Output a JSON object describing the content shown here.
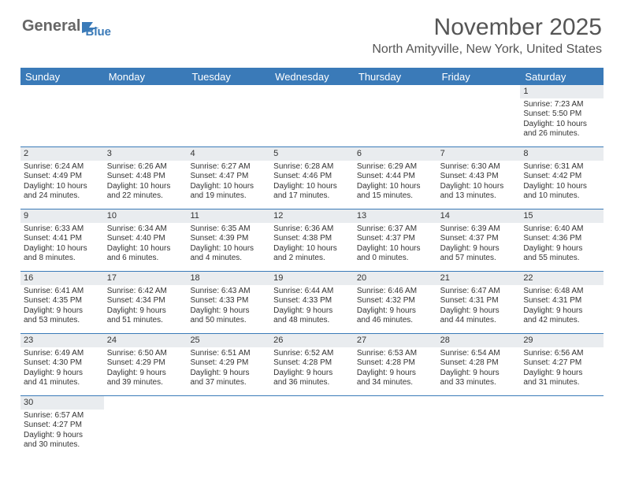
{
  "logo": {
    "text1": "General",
    "text2": "Blue"
  },
  "title": {
    "month": "November 2025",
    "location": "North Amityville, New York, United States"
  },
  "colors": {
    "header_bg": "#3a7ab8",
    "daynum_bg": "#e9ecef",
    "row_border": "#3a7ab8",
    "text": "#333333",
    "title_text": "#555555",
    "background": "#ffffff"
  },
  "daysOfWeek": [
    "Sunday",
    "Monday",
    "Tuesday",
    "Wednesday",
    "Thursday",
    "Friday",
    "Saturday"
  ],
  "weeks": [
    [
      null,
      null,
      null,
      null,
      null,
      null,
      {
        "n": "1",
        "sr": "Sunrise: 7:23 AM",
        "ss": "Sunset: 5:50 PM",
        "d1": "Daylight: 10 hours",
        "d2": "and 26 minutes."
      }
    ],
    [
      {
        "n": "2",
        "sr": "Sunrise: 6:24 AM",
        "ss": "Sunset: 4:49 PM",
        "d1": "Daylight: 10 hours",
        "d2": "and 24 minutes."
      },
      {
        "n": "3",
        "sr": "Sunrise: 6:26 AM",
        "ss": "Sunset: 4:48 PM",
        "d1": "Daylight: 10 hours",
        "d2": "and 22 minutes."
      },
      {
        "n": "4",
        "sr": "Sunrise: 6:27 AM",
        "ss": "Sunset: 4:47 PM",
        "d1": "Daylight: 10 hours",
        "d2": "and 19 minutes."
      },
      {
        "n": "5",
        "sr": "Sunrise: 6:28 AM",
        "ss": "Sunset: 4:46 PM",
        "d1": "Daylight: 10 hours",
        "d2": "and 17 minutes."
      },
      {
        "n": "6",
        "sr": "Sunrise: 6:29 AM",
        "ss": "Sunset: 4:44 PM",
        "d1": "Daylight: 10 hours",
        "d2": "and 15 minutes."
      },
      {
        "n": "7",
        "sr": "Sunrise: 6:30 AM",
        "ss": "Sunset: 4:43 PM",
        "d1": "Daylight: 10 hours",
        "d2": "and 13 minutes."
      },
      {
        "n": "8",
        "sr": "Sunrise: 6:31 AM",
        "ss": "Sunset: 4:42 PM",
        "d1": "Daylight: 10 hours",
        "d2": "and 10 minutes."
      }
    ],
    [
      {
        "n": "9",
        "sr": "Sunrise: 6:33 AM",
        "ss": "Sunset: 4:41 PM",
        "d1": "Daylight: 10 hours",
        "d2": "and 8 minutes."
      },
      {
        "n": "10",
        "sr": "Sunrise: 6:34 AM",
        "ss": "Sunset: 4:40 PM",
        "d1": "Daylight: 10 hours",
        "d2": "and 6 minutes."
      },
      {
        "n": "11",
        "sr": "Sunrise: 6:35 AM",
        "ss": "Sunset: 4:39 PM",
        "d1": "Daylight: 10 hours",
        "d2": "and 4 minutes."
      },
      {
        "n": "12",
        "sr": "Sunrise: 6:36 AM",
        "ss": "Sunset: 4:38 PM",
        "d1": "Daylight: 10 hours",
        "d2": "and 2 minutes."
      },
      {
        "n": "13",
        "sr": "Sunrise: 6:37 AM",
        "ss": "Sunset: 4:37 PM",
        "d1": "Daylight: 10 hours",
        "d2": "and 0 minutes."
      },
      {
        "n": "14",
        "sr": "Sunrise: 6:39 AM",
        "ss": "Sunset: 4:37 PM",
        "d1": "Daylight: 9 hours",
        "d2": "and 57 minutes."
      },
      {
        "n": "15",
        "sr": "Sunrise: 6:40 AM",
        "ss": "Sunset: 4:36 PM",
        "d1": "Daylight: 9 hours",
        "d2": "and 55 minutes."
      }
    ],
    [
      {
        "n": "16",
        "sr": "Sunrise: 6:41 AM",
        "ss": "Sunset: 4:35 PM",
        "d1": "Daylight: 9 hours",
        "d2": "and 53 minutes."
      },
      {
        "n": "17",
        "sr": "Sunrise: 6:42 AM",
        "ss": "Sunset: 4:34 PM",
        "d1": "Daylight: 9 hours",
        "d2": "and 51 minutes."
      },
      {
        "n": "18",
        "sr": "Sunrise: 6:43 AM",
        "ss": "Sunset: 4:33 PM",
        "d1": "Daylight: 9 hours",
        "d2": "and 50 minutes."
      },
      {
        "n": "19",
        "sr": "Sunrise: 6:44 AM",
        "ss": "Sunset: 4:33 PM",
        "d1": "Daylight: 9 hours",
        "d2": "and 48 minutes."
      },
      {
        "n": "20",
        "sr": "Sunrise: 6:46 AM",
        "ss": "Sunset: 4:32 PM",
        "d1": "Daylight: 9 hours",
        "d2": "and 46 minutes."
      },
      {
        "n": "21",
        "sr": "Sunrise: 6:47 AM",
        "ss": "Sunset: 4:31 PM",
        "d1": "Daylight: 9 hours",
        "d2": "and 44 minutes."
      },
      {
        "n": "22",
        "sr": "Sunrise: 6:48 AM",
        "ss": "Sunset: 4:31 PM",
        "d1": "Daylight: 9 hours",
        "d2": "and 42 minutes."
      }
    ],
    [
      {
        "n": "23",
        "sr": "Sunrise: 6:49 AM",
        "ss": "Sunset: 4:30 PM",
        "d1": "Daylight: 9 hours",
        "d2": "and 41 minutes."
      },
      {
        "n": "24",
        "sr": "Sunrise: 6:50 AM",
        "ss": "Sunset: 4:29 PM",
        "d1": "Daylight: 9 hours",
        "d2": "and 39 minutes."
      },
      {
        "n": "25",
        "sr": "Sunrise: 6:51 AM",
        "ss": "Sunset: 4:29 PM",
        "d1": "Daylight: 9 hours",
        "d2": "and 37 minutes."
      },
      {
        "n": "26",
        "sr": "Sunrise: 6:52 AM",
        "ss": "Sunset: 4:28 PM",
        "d1": "Daylight: 9 hours",
        "d2": "and 36 minutes."
      },
      {
        "n": "27",
        "sr": "Sunrise: 6:53 AM",
        "ss": "Sunset: 4:28 PM",
        "d1": "Daylight: 9 hours",
        "d2": "and 34 minutes."
      },
      {
        "n": "28",
        "sr": "Sunrise: 6:54 AM",
        "ss": "Sunset: 4:28 PM",
        "d1": "Daylight: 9 hours",
        "d2": "and 33 minutes."
      },
      {
        "n": "29",
        "sr": "Sunrise: 6:56 AM",
        "ss": "Sunset: 4:27 PM",
        "d1": "Daylight: 9 hours",
        "d2": "and 31 minutes."
      }
    ],
    [
      {
        "n": "30",
        "sr": "Sunrise: 6:57 AM",
        "ss": "Sunset: 4:27 PM",
        "d1": "Daylight: 9 hours",
        "d2": "and 30 minutes."
      },
      null,
      null,
      null,
      null,
      null,
      null
    ]
  ]
}
